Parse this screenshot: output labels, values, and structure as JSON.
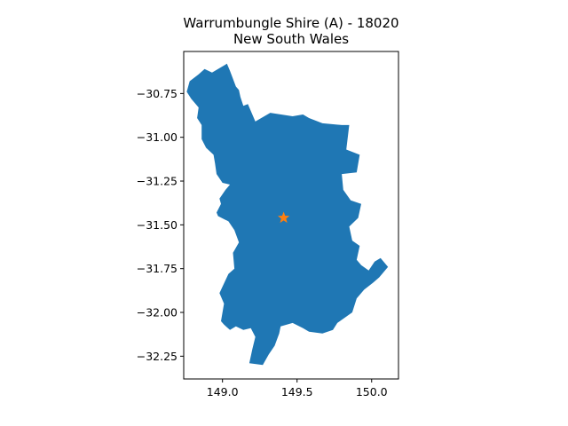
{
  "title": {
    "line1": "Warrumbungle Shire (A) - 18020",
    "line2": "New South Wales"
  },
  "axes": {
    "x_ticks": [
      {
        "value": 149.0,
        "label": "149.0"
      },
      {
        "value": 149.5,
        "label": "149.5"
      },
      {
        "value": 150.0,
        "label": "150.0"
      }
    ],
    "y_ticks": [
      {
        "value": -30.75,
        "label": "−30.75"
      },
      {
        "value": -31.0,
        "label": "−31.00"
      },
      {
        "value": -31.25,
        "label": "−31.25"
      },
      {
        "value": -31.5,
        "label": "−31.50"
      },
      {
        "value": -31.75,
        "label": "−31.75"
      },
      {
        "value": -32.0,
        "label": "−32.00"
      },
      {
        "value": -32.25,
        "label": "−32.25"
      }
    ],
    "xlim": [
      148.74,
      150.18
    ],
    "ylim": [
      -32.38,
      -30.51
    ]
  },
  "colors": {
    "region_fill": "#1f77b4",
    "marker": "#ff7f0e"
  },
  "map": {
    "region_outline": [
      [
        148.78,
        -30.68
      ],
      [
        148.84,
        -30.64
      ],
      [
        148.88,
        -30.61
      ],
      [
        148.93,
        -30.63
      ],
      [
        149.03,
        -30.58
      ],
      [
        149.05,
        -30.62
      ],
      [
        149.09,
        -30.71
      ],
      [
        149.11,
        -30.73
      ],
      [
        149.12,
        -30.77
      ],
      [
        149.14,
        -30.82
      ],
      [
        149.17,
        -30.81
      ],
      [
        149.22,
        -30.91
      ],
      [
        149.32,
        -30.86
      ],
      [
        149.47,
        -30.88
      ],
      [
        149.54,
        -30.87
      ],
      [
        149.58,
        -30.89
      ],
      [
        149.67,
        -30.92
      ],
      [
        149.8,
        -30.93
      ],
      [
        149.85,
        -30.93
      ],
      [
        149.83,
        -31.07
      ],
      [
        149.92,
        -31.1
      ],
      [
        149.9,
        -31.2
      ],
      [
        149.8,
        -31.21
      ],
      [
        149.81,
        -31.3
      ],
      [
        149.86,
        -31.36
      ],
      [
        149.93,
        -31.38
      ],
      [
        149.91,
        -31.46
      ],
      [
        149.85,
        -31.51
      ],
      [
        149.87,
        -31.59
      ],
      [
        149.92,
        -31.62
      ],
      [
        149.9,
        -31.7
      ],
      [
        149.93,
        -31.73
      ],
      [
        149.98,
        -31.76
      ],
      [
        150.02,
        -31.71
      ],
      [
        150.06,
        -31.69
      ],
      [
        150.11,
        -31.74
      ],
      [
        150.05,
        -31.8
      ],
      [
        150.01,
        -31.83
      ],
      [
        149.95,
        -31.87
      ],
      [
        149.9,
        -31.92
      ],
      [
        149.87,
        -32.0
      ],
      [
        149.77,
        -32.06
      ],
      [
        149.74,
        -32.1
      ],
      [
        149.67,
        -32.12
      ],
      [
        149.58,
        -32.11
      ],
      [
        149.54,
        -32.09
      ],
      [
        149.47,
        -32.06
      ],
      [
        149.39,
        -32.08
      ],
      [
        149.38,
        -32.12
      ],
      [
        149.35,
        -32.19
      ],
      [
        149.31,
        -32.24
      ],
      [
        149.27,
        -32.3
      ],
      [
        149.18,
        -32.29
      ],
      [
        149.2,
        -32.21
      ],
      [
        149.22,
        -32.14
      ],
      [
        149.19,
        -32.09
      ],
      [
        149.14,
        -32.1
      ],
      [
        149.09,
        -32.08
      ],
      [
        149.05,
        -32.1
      ],
      [
        149.01,
        -32.07
      ],
      [
        148.99,
        -32.05
      ],
      [
        149.01,
        -31.95
      ],
      [
        148.98,
        -31.89
      ],
      [
        149.04,
        -31.78
      ],
      [
        149.08,
        -31.75
      ],
      [
        149.07,
        -31.66
      ],
      [
        149.11,
        -31.6
      ],
      [
        149.08,
        -31.53
      ],
      [
        149.04,
        -31.48
      ],
      [
        148.97,
        -31.45
      ],
      [
        148.96,
        -31.43
      ],
      [
        148.99,
        -31.38
      ],
      [
        148.98,
        -31.35
      ],
      [
        149.02,
        -31.3
      ],
      [
        149.05,
        -31.27
      ],
      [
        149.0,
        -31.26
      ],
      [
        148.96,
        -31.21
      ],
      [
        148.95,
        -31.15
      ],
      [
        148.94,
        -31.1
      ],
      [
        148.89,
        -31.06
      ],
      [
        148.86,
        -31.01
      ],
      [
        148.86,
        -30.93
      ],
      [
        148.83,
        -30.89
      ],
      [
        148.84,
        -30.83
      ],
      [
        148.79,
        -30.78
      ],
      [
        148.76,
        -30.74
      ]
    ],
    "marker_point": [
      149.41,
      -31.46
    ]
  }
}
